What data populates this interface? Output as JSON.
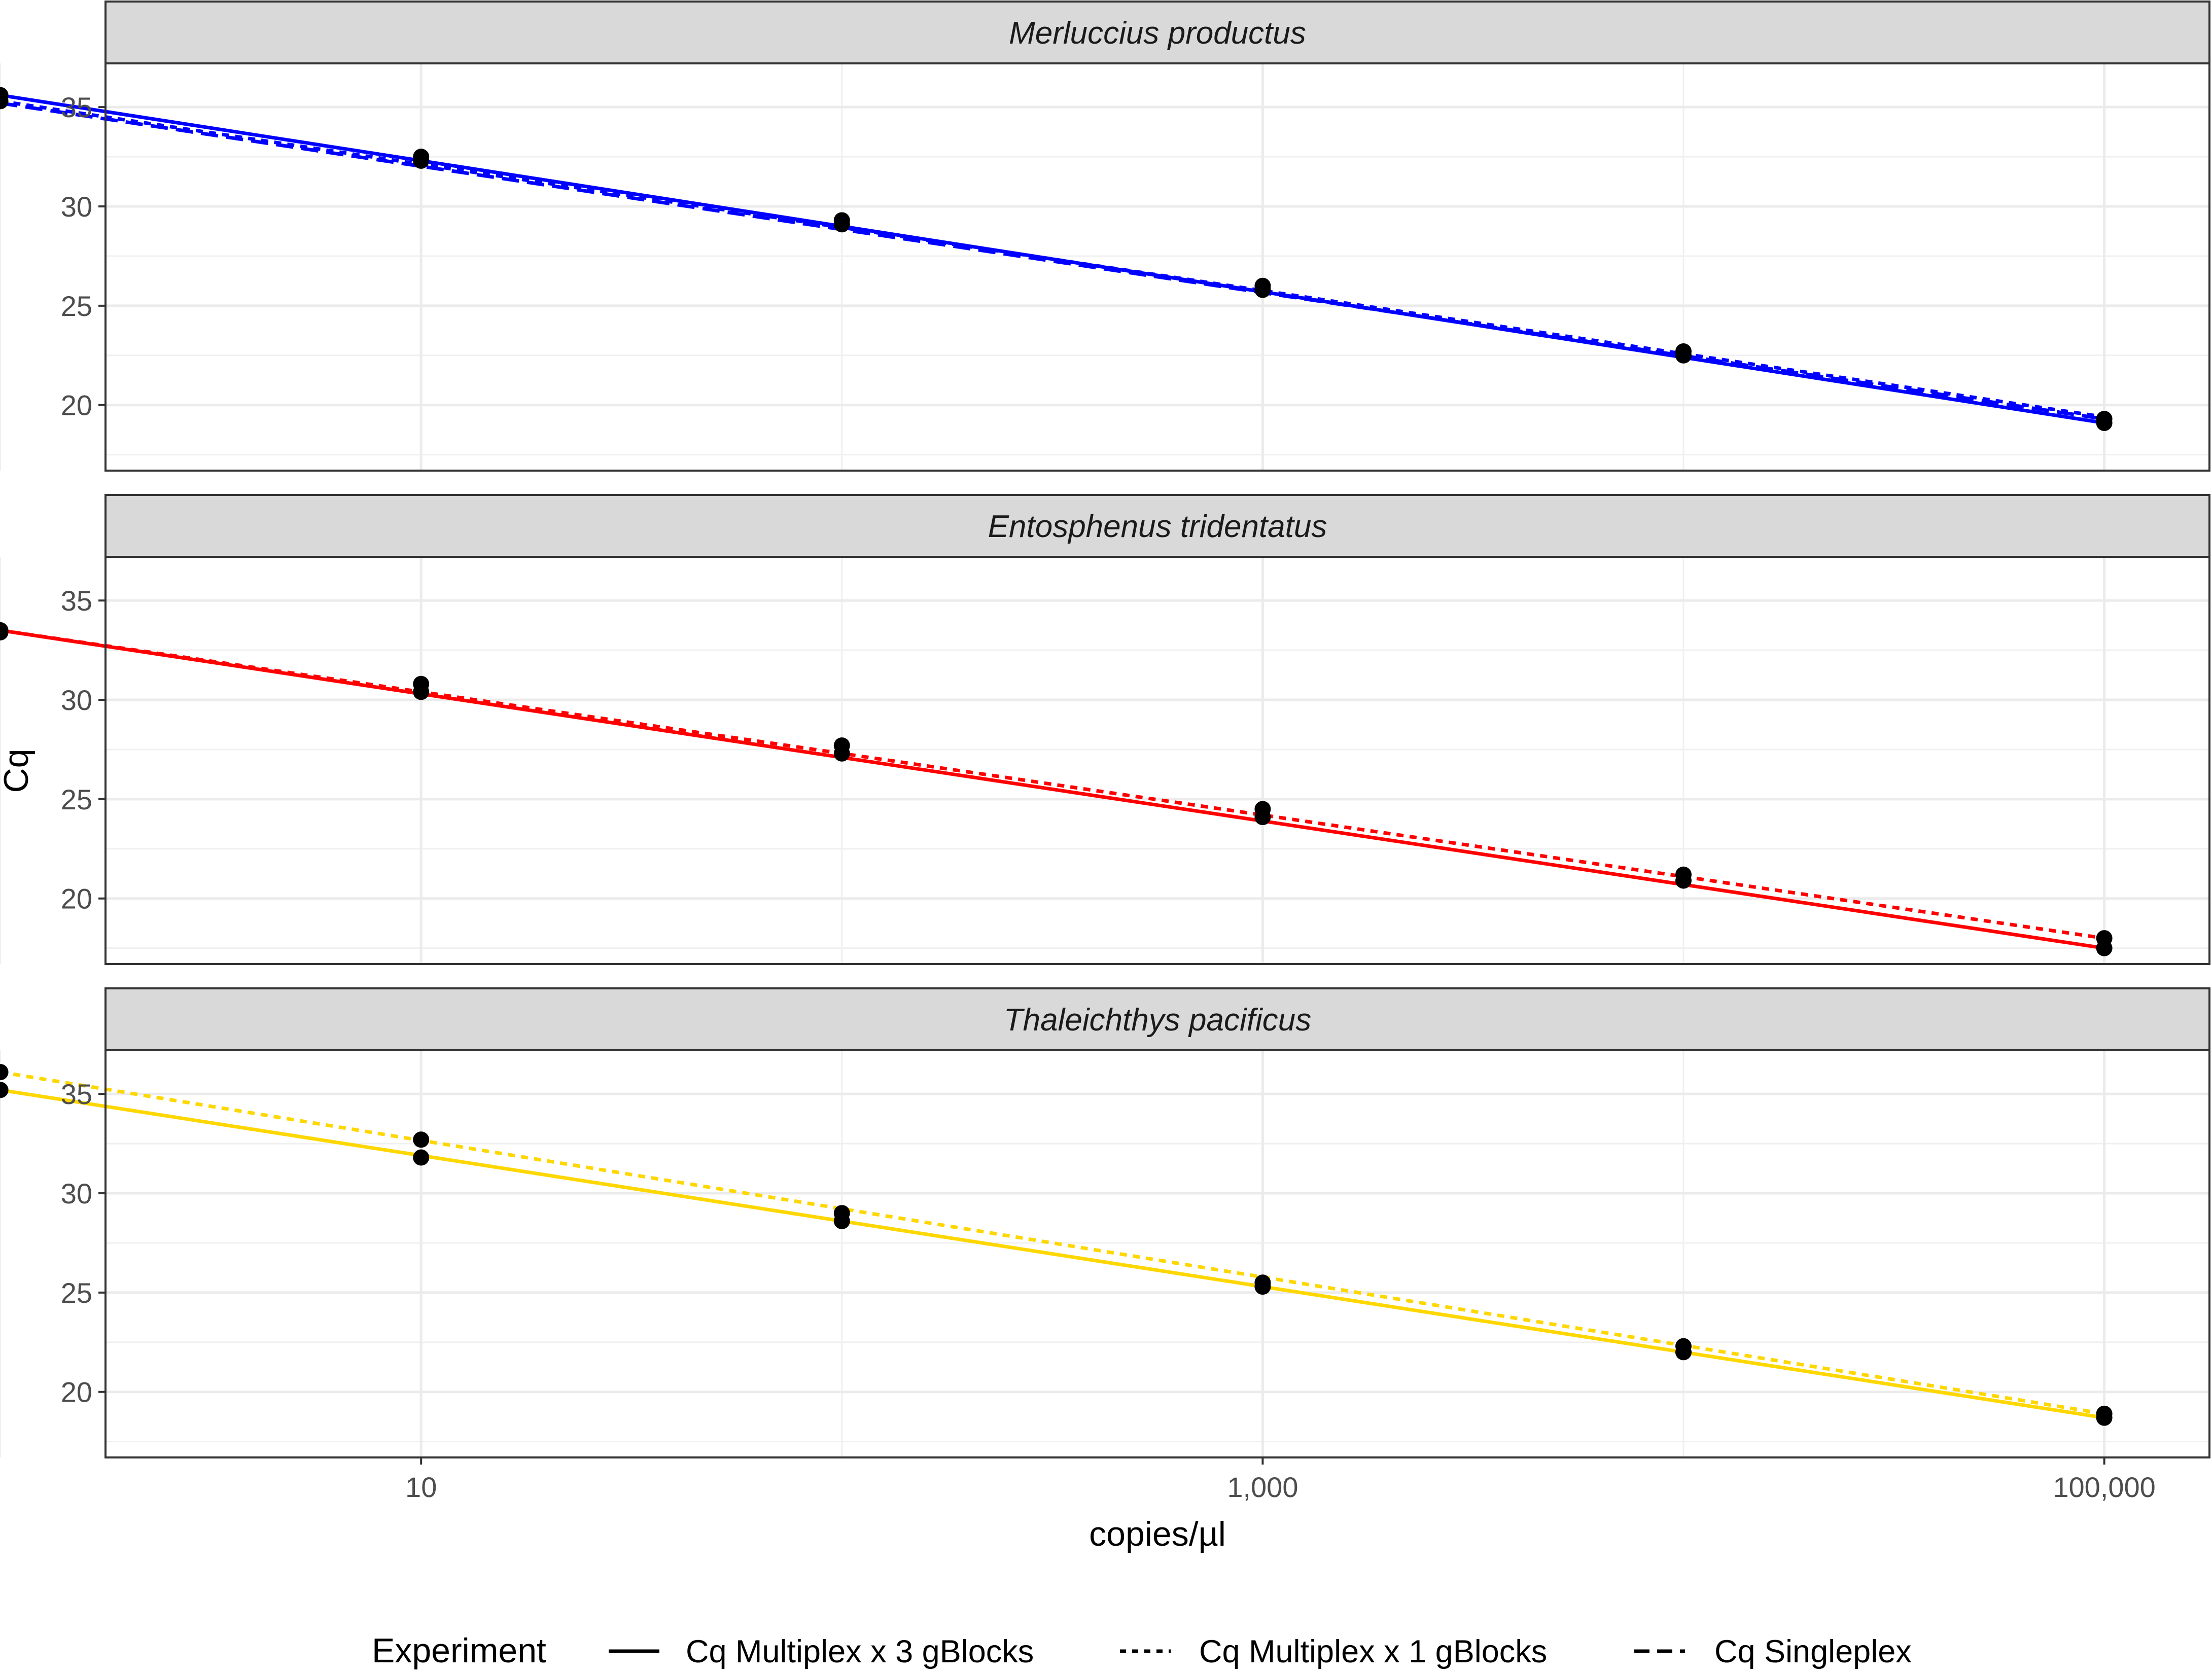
{
  "chart_data": {
    "type": "line",
    "xlabel": "copies/µl",
    "ylabel": "Cq",
    "x_scale": "log10",
    "x_ticks": [
      10,
      1000,
      100000
    ],
    "x_tick_labels": [
      "10",
      "1,000",
      "100,000"
    ],
    "y_ticks": [
      20,
      25,
      30,
      35
    ],
    "y_tick_labels": [
      "20",
      "25",
      "30",
      "35"
    ],
    "ylim": [
      16.7,
      37.2
    ],
    "xlim_log10": [
      0.25,
      5.25
    ],
    "grid": true,
    "legend": {
      "position": "bottom",
      "title": "Experiment",
      "entries": [
        {
          "label": "Cq Multiplex x 3 gBlocks",
          "linetype": "solid"
        },
        {
          "label": "Cq Multiplex x 1 gBlocks",
          "linetype": "dotted"
        },
        {
          "label": "Cq Singleplex",
          "linetype": "dashed"
        }
      ]
    },
    "concentrations": [
      1,
      10,
      100,
      1000,
      10000,
      100000
    ],
    "panels": [
      {
        "title": "Merluccius productus",
        "color": "#0000ff",
        "points": [
          {
            "x": 1,
            "y": 35.6
          },
          {
            "x": 1,
            "y": 35.3
          },
          {
            "x": 10,
            "y": 32.5
          },
          {
            "x": 10,
            "y": 32.3
          },
          {
            "x": 100,
            "y": 29.3
          },
          {
            "x": 100,
            "y": 29.1
          },
          {
            "x": 1000,
            "y": 26.0
          },
          {
            "x": 1000,
            "y": 25.8
          },
          {
            "x": 10000,
            "y": 22.7
          },
          {
            "x": 10000,
            "y": 22.5
          },
          {
            "x": 100000,
            "y": 19.3
          },
          {
            "x": 100000,
            "y": 19.1
          }
        ],
        "lines": [
          {
            "linetype": "solid",
            "x": [
              1,
              100000
            ],
            "y": [
              35.6,
              19.1
            ]
          },
          {
            "linetype": "dotted",
            "x": [
              1,
              100000
            ],
            "y": [
              35.3,
              19.4
            ]
          },
          {
            "linetype": "dashed",
            "x": [
              1,
              100000
            ],
            "y": [
              35.2,
              19.3
            ]
          }
        ]
      },
      {
        "title": "Entosphenus tridentatus",
        "color": "#ff0000",
        "points": [
          {
            "x": 1,
            "y": 33.5
          },
          {
            "x": 1,
            "y": 33.4
          },
          {
            "x": 10,
            "y": 30.8
          },
          {
            "x": 10,
            "y": 30.4
          },
          {
            "x": 100,
            "y": 27.7
          },
          {
            "x": 100,
            "y": 27.3
          },
          {
            "x": 1000,
            "y": 24.5
          },
          {
            "x": 1000,
            "y": 24.1
          },
          {
            "x": 10000,
            "y": 21.2
          },
          {
            "x": 10000,
            "y": 20.9
          },
          {
            "x": 100000,
            "y": 18.0
          },
          {
            "x": 100000,
            "y": 17.5
          }
        ],
        "lines": [
          {
            "linetype": "solid",
            "x": [
              1,
              100000
            ],
            "y": [
              33.5,
              17.5
            ]
          },
          {
            "linetype": "dotted",
            "x": [
              1,
              100000
            ],
            "y": [
              33.5,
              18.0
            ]
          }
        ]
      },
      {
        "title": "Thaleichthys pacificus",
        "color": "#ffd700",
        "points": [
          {
            "x": 1,
            "y": 36.1
          },
          {
            "x": 1,
            "y": 35.2
          },
          {
            "x": 10,
            "y": 32.7
          },
          {
            "x": 10,
            "y": 31.8
          },
          {
            "x": 100,
            "y": 29.0
          },
          {
            "x": 100,
            "y": 28.6
          },
          {
            "x": 1000,
            "y": 25.5
          },
          {
            "x": 1000,
            "y": 25.3
          },
          {
            "x": 10000,
            "y": 22.3
          },
          {
            "x": 10000,
            "y": 22.0
          },
          {
            "x": 100000,
            "y": 18.9
          },
          {
            "x": 100000,
            "y": 18.7
          }
        ],
        "lines": [
          {
            "linetype": "solid",
            "x": [
              1,
              100000
            ],
            "y": [
              35.2,
              18.7
            ]
          },
          {
            "linetype": "dotted",
            "x": [
              1,
              100000
            ],
            "y": [
              36.1,
              18.9
            ]
          }
        ]
      }
    ]
  }
}
